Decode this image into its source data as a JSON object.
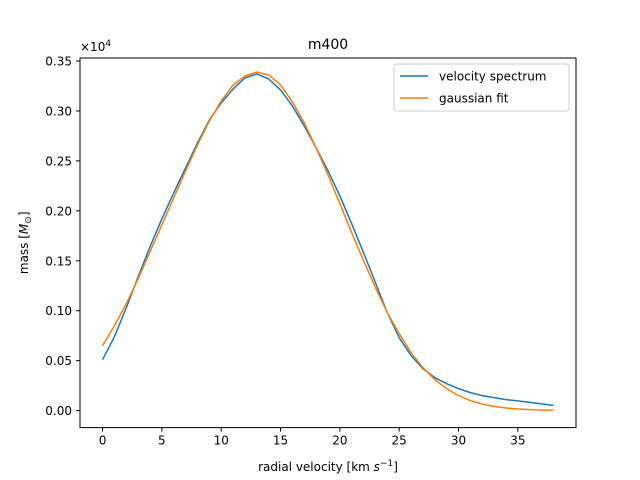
{
  "chart_data": {
    "type": "line",
    "title": "m400",
    "xlabel_main": "radial velocity [km ",
    "xlabel_unit_base": "s",
    "xlabel_unit_exp": "−1",
    "xlabel_close": "]",
    "ylabel_main": "mass [",
    "ylabel_symbol": "M",
    "ylabel_sub": "⊙",
    "ylabel_close": "]",
    "y_multiplier_base": "×10",
    "y_multiplier_exp": "4",
    "xlim": [
      -1.9,
      39.9
    ],
    "ylim": [
      -0.017,
      0.353
    ],
    "x_ticks": [
      0,
      5,
      10,
      15,
      20,
      25,
      30,
      35
    ],
    "x_tick_labels": [
      "0",
      "5",
      "10",
      "15",
      "20",
      "25",
      "30",
      "35"
    ],
    "y_ticks": [
      0.0,
      0.05,
      0.1,
      0.15,
      0.2,
      0.25,
      0.3,
      0.35
    ],
    "y_tick_labels": [
      "0.00",
      "0.05",
      "0.10",
      "0.15",
      "0.20",
      "0.25",
      "0.30",
      "0.35"
    ],
    "grid": false,
    "legend_position": "top-right",
    "series": [
      {
        "name": "velocity spectrum",
        "color": "#1f77b4",
        "x": [
          0,
          1,
          2,
          3,
          4,
          5,
          6,
          7,
          8,
          9,
          10,
          11,
          12,
          13,
          14,
          15,
          16,
          17,
          18,
          19,
          20,
          21,
          22,
          23,
          24,
          25,
          26,
          27,
          28,
          29,
          30,
          31,
          32,
          33,
          34,
          35,
          36,
          37,
          38
        ],
        "values": [
          0.051,
          0.074,
          0.103,
          0.134,
          0.164,
          0.192,
          0.218,
          0.243,
          0.268,
          0.291,
          0.308,
          0.322,
          0.333,
          0.337,
          0.332,
          0.321,
          0.305,
          0.285,
          0.263,
          0.24,
          0.215,
          0.187,
          0.158,
          0.128,
          0.098,
          0.073,
          0.055,
          0.042,
          0.033,
          0.027,
          0.022,
          0.018,
          0.015,
          0.013,
          0.011,
          0.0098,
          0.0083,
          0.0068,
          0.0053
        ]
      },
      {
        "name": "gaussian fit",
        "color": "#ff7f0e",
        "x": [
          0,
          1,
          2,
          3,
          4,
          5,
          6,
          7,
          8,
          9,
          10,
          11,
          12,
          13,
          14,
          15,
          16,
          17,
          18,
          19,
          20,
          21,
          22,
          23,
          24,
          25,
          26,
          27,
          28,
          29,
          30,
          31,
          32,
          33,
          34,
          35,
          36,
          37,
          38
        ],
        "values": [
          0.065,
          0.085,
          0.107,
          0.132,
          0.159,
          0.186,
          0.213,
          0.24,
          0.266,
          0.29,
          0.31,
          0.326,
          0.335,
          0.339,
          0.336,
          0.326,
          0.309,
          0.288,
          0.263,
          0.236,
          0.207,
          0.178,
          0.15,
          0.123,
          0.098,
          0.077,
          0.058,
          0.043,
          0.031,
          0.022,
          0.015,
          0.01,
          0.0066,
          0.0042,
          0.0026,
          0.0016,
          0.00097,
          0.00057,
          0.00033
        ]
      }
    ]
  }
}
